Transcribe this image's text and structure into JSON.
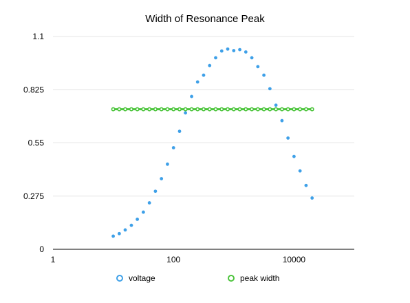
{
  "chart_data": {
    "type": "scatter",
    "title": "Width of Resonance Peak",
    "xlabel": "",
    "ylabel": "",
    "x_scale": "log",
    "xlim": [
      1,
      100000
    ],
    "ylim": [
      0,
      1.1
    ],
    "x_ticks": [
      {
        "value": 1,
        "label": "1"
      },
      {
        "value": 100,
        "label": "100"
      },
      {
        "value": 10000,
        "label": "10000"
      }
    ],
    "y_ticks": [
      {
        "value": 0,
        "label": "0"
      },
      {
        "value": 0.275,
        "label": "0.275"
      },
      {
        "value": 0.55,
        "label": "0.55"
      },
      {
        "value": 0.825,
        "label": "0.825"
      },
      {
        "value": 1.1,
        "label": "1.1"
      }
    ],
    "grid": true,
    "legend_position": "bottom",
    "series": [
      {
        "name": "voltage",
        "color": "#3ea0e8",
        "marker": "point",
        "x": [
          10,
          12.6,
          15.8,
          20,
          25.1,
          31.6,
          39.8,
          50.1,
          63.1,
          79.4,
          100,
          126,
          158,
          200,
          251,
          316,
          398,
          501,
          631,
          794,
          1000,
          1259,
          1585,
          1995,
          2512,
          3162,
          3981,
          5012,
          6310,
          7943,
          10000,
          12589,
          15849,
          19953
        ],
        "y": [
          0.068,
          0.081,
          0.1,
          0.124,
          0.155,
          0.192,
          0.24,
          0.3,
          0.365,
          0.44,
          0.525,
          0.61,
          0.705,
          0.79,
          0.865,
          0.9,
          0.95,
          0.99,
          1.025,
          1.035,
          1.027,
          1.032,
          1.02,
          0.99,
          0.944,
          0.9,
          0.83,
          0.745,
          0.665,
          0.575,
          0.48,
          0.405,
          0.33,
          0.265
        ]
      },
      {
        "name": "peak width",
        "color": "#4cc43c",
        "marker": "ring-line",
        "x": [
          10,
          12.6,
          15.8,
          20,
          25.1,
          31.6,
          39.8,
          50.1,
          63.1,
          79.4,
          100,
          126,
          158,
          200,
          251,
          316,
          398,
          501,
          631,
          794,
          1000,
          1259,
          1585,
          1995,
          2512,
          3162,
          3981,
          5012,
          6310,
          7943,
          10000,
          12589,
          15849,
          19953
        ],
        "y": [
          0.724,
          0.724,
          0.724,
          0.724,
          0.724,
          0.724,
          0.724,
          0.724,
          0.724,
          0.724,
          0.724,
          0.724,
          0.724,
          0.724,
          0.724,
          0.724,
          0.724,
          0.724,
          0.724,
          0.724,
          0.724,
          0.724,
          0.724,
          0.724,
          0.724,
          0.724,
          0.724,
          0.724,
          0.724,
          0.724,
          0.724,
          0.724,
          0.724,
          0.724
        ]
      }
    ]
  }
}
